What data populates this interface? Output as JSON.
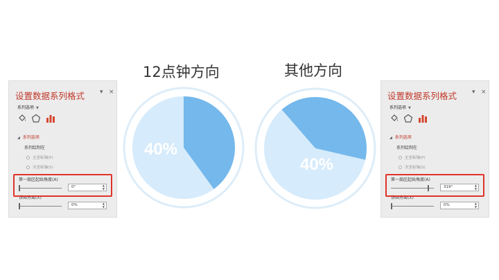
{
  "headings": {
    "left": "12点钟方向",
    "right": "其他方向"
  },
  "colors": {
    "accent_red": "#c0392b",
    "highlight_box": "#e0332a",
    "slice": "#74b8ec",
    "rest": "#d6ebfb",
    "ring": "#ddedf8"
  },
  "panels": [
    {
      "title": "设置数据系列格式",
      "pin_icon": "dropdown-arrow-icon",
      "close_label": "×",
      "options_label": "系列选项",
      "tool_icons": [
        "fill-bucket-icon",
        "pentagon-icon",
        "bar-chart-icon"
      ],
      "section_label": "系列选项",
      "plot_on_label": "系列绘制在",
      "primary_axis_label": "主坐标轴(P)",
      "secondary_axis_label": "次坐标轴(S)",
      "angle_label": "第一扇区起始角度(A)",
      "angle_value": "0°",
      "angle_fraction": 0.0,
      "explosion_label": "饼图分离(X)",
      "explosion_value": "0%",
      "explosion_fraction": 0.0
    },
    {
      "title": "设置数据系列格式",
      "pin_icon": "dropdown-arrow-icon",
      "close_label": "×",
      "options_label": "系列选项",
      "tool_icons": [
        "fill-bucket-icon",
        "pentagon-icon",
        "bar-chart-icon"
      ],
      "section_label": "系列选项",
      "plot_on_label": "系列绘制在",
      "primary_axis_label": "主坐标轴(P)",
      "secondary_axis_label": "次坐标轴(S)",
      "angle_label": "第一扇区起始角度(A)",
      "angle_value": "319°",
      "angle_fraction": 0.886,
      "explosion_label": "饼图分离(X)",
      "explosion_value": "0%",
      "explosion_fraction": 0.0
    }
  ],
  "chart_data": [
    {
      "type": "pie",
      "title": "12点钟方向",
      "values": [
        40,
        60
      ],
      "data_labels": [
        "40%"
      ],
      "start_angle": 0
    },
    {
      "type": "pie",
      "title": "其他方向",
      "values": [
        40,
        60
      ],
      "data_labels": [
        "40%"
      ],
      "start_angle": 319
    }
  ]
}
